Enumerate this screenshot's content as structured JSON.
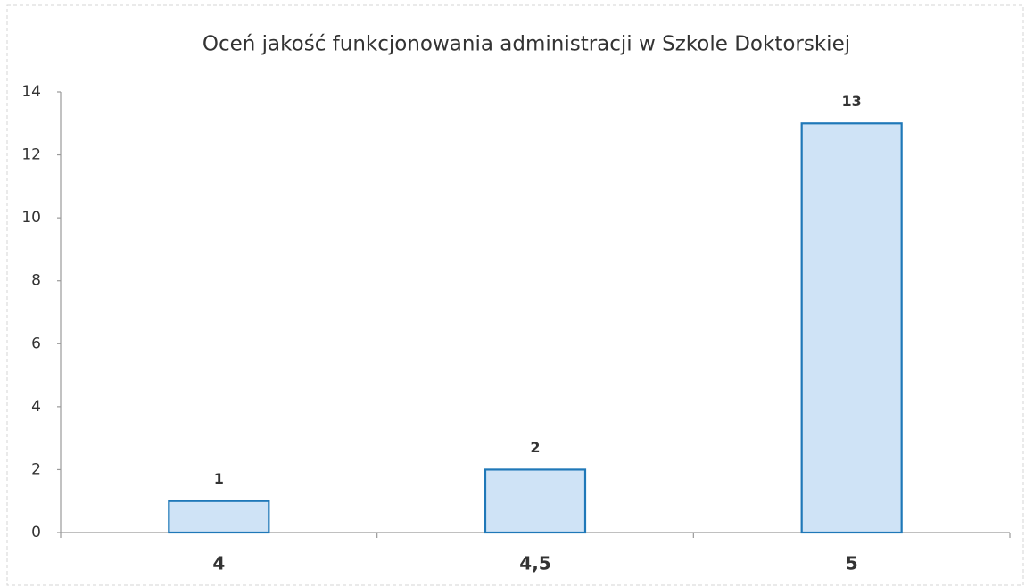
{
  "chart_data": {
    "type": "bar",
    "title": "Oceń jakość funkcjonowania administracji w Szkole Doktorskiej",
    "categories": [
      "4",
      "4,5",
      "5"
    ],
    "values": [
      1,
      2,
      13
    ],
    "color": "#cfe3f6",
    "edge_color": "#1f78b8",
    "ylim": [
      0,
      14
    ],
    "yticks": [
      0,
      2,
      4,
      6,
      8,
      10,
      12,
      14
    ],
    "grid": false
  }
}
